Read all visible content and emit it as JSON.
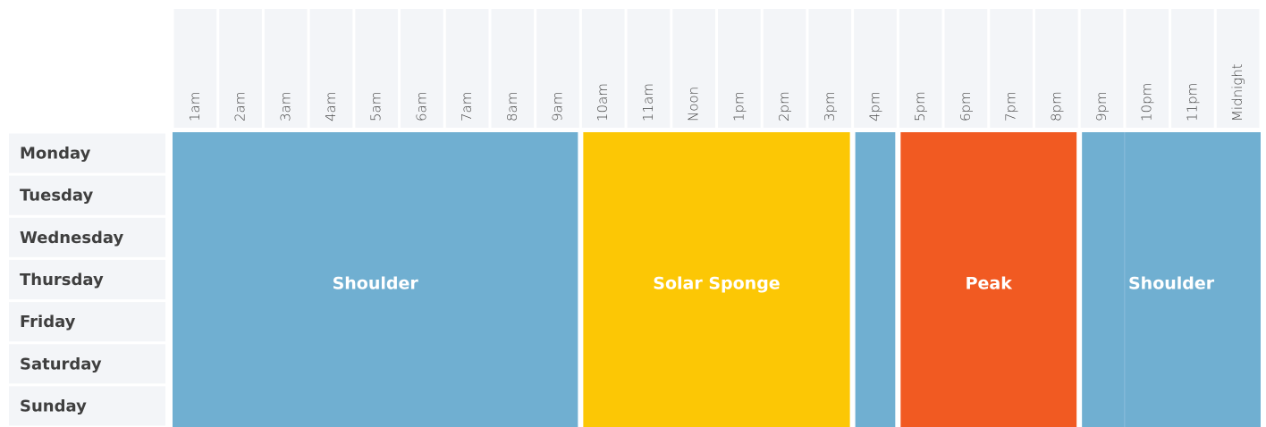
{
  "hours": [
    "1am",
    "2am",
    "3am",
    "4am",
    "5am",
    "6am",
    "7am",
    "8am",
    "9am",
    "10am",
    "11am",
    "Noon",
    "1pm",
    "2pm",
    "3pm",
    "4pm",
    "5pm",
    "6pm",
    "7pm",
    "8pm",
    "9pm",
    "10pm",
    "11pm",
    "Midnight"
  ],
  "days": [
    "Monday",
    "Tuesday",
    "Wednesday",
    "Thursday",
    "Friday",
    "Saturday",
    "Sunday"
  ],
  "bands": [
    {
      "label": "Shoulder",
      "color": "#70afd1"
    },
    {
      "label": "Solar Sponge",
      "color": "#fcc705"
    },
    {
      "label": null,
      "color": "#70afd1"
    },
    {
      "label": "Peak",
      "color": "#f15a22"
    },
    {
      "label": "Shoulder",
      "color": "#70afd1"
    }
  ]
}
